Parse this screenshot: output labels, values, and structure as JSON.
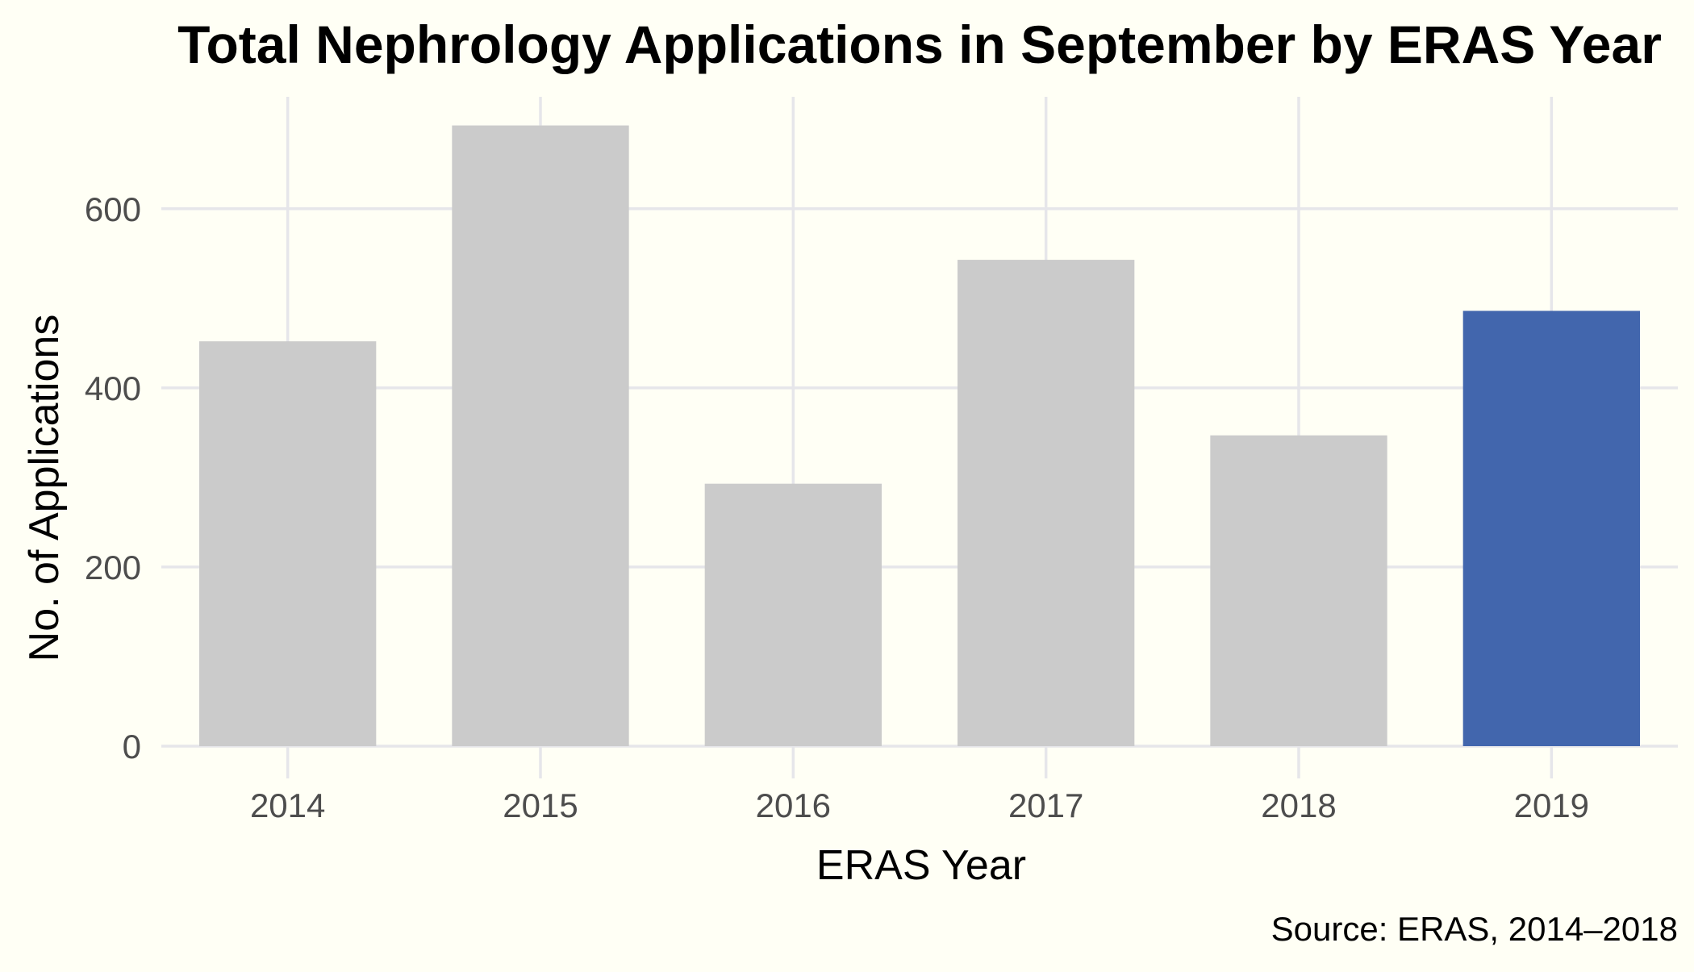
{
  "chart_data": {
    "type": "bar",
    "title": "Total Nephrology Applications in September by ERAS Year",
    "xlabel": "ERAS Year",
    "ylabel": "No. of Applications",
    "caption": "Source: ERAS, 2014–2018",
    "categories": [
      "2014",
      "2015",
      "2016",
      "2017",
      "2018",
      "2019"
    ],
    "values": [
      452,
      693,
      293,
      543,
      347,
      486
    ],
    "highlight_category": "2019",
    "ylim": [
      0,
      725
    ],
    "yticks": [
      0,
      200,
      400,
      600
    ],
    "grid": true,
    "legend": "none",
    "colors": {
      "background": "#fffff5",
      "bar_default": "#cbcbcb",
      "bar_highlight": "#4266ad",
      "grid": "#e6e6ea"
    }
  }
}
